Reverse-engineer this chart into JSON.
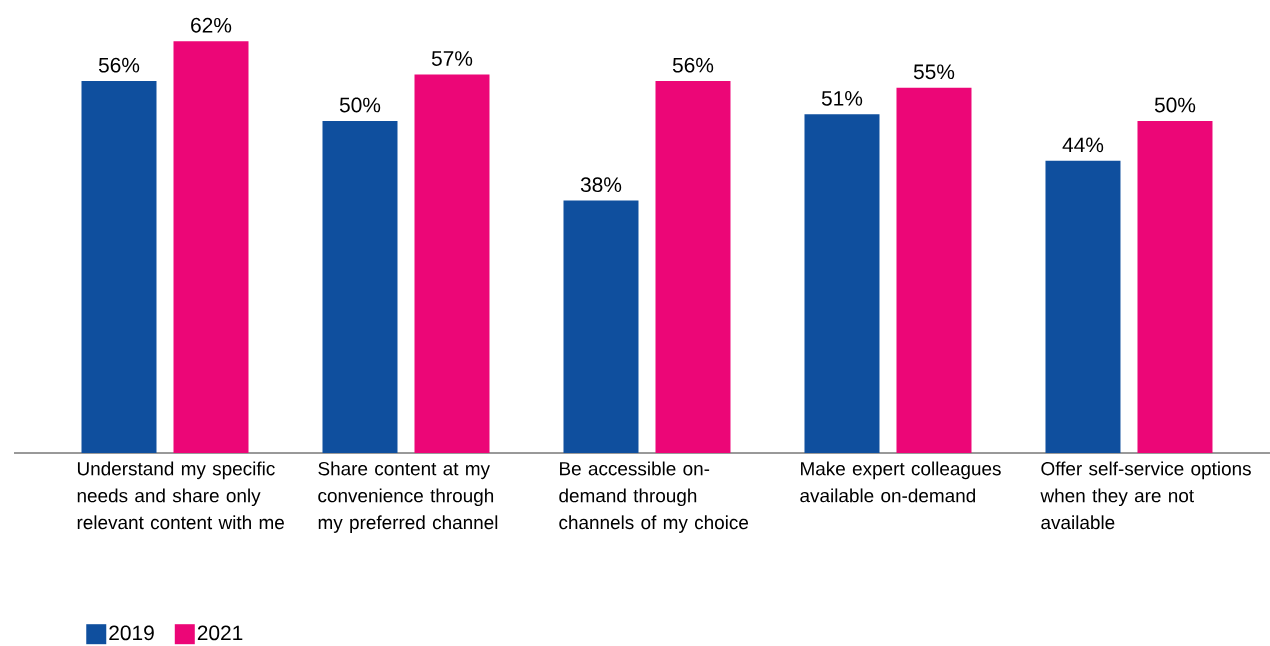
{
  "chart_data": {
    "type": "bar",
    "categories": [
      "Understand my specific needs and share only relevant content with me",
      "Share content at my convenience through my preferred channel",
      "Be accessible on-demand through channels of my choice",
      "Make expert colleagues available on-demand",
      "Offer self-service options when they are not available"
    ],
    "series": [
      {
        "name": "2019",
        "color": "#0f4f9e",
        "values": [
          56,
          50,
          38,
          51,
          44
        ],
        "value_labels": [
          "56%",
          "50%",
          "38%",
          "51%",
          "44%"
        ]
      },
      {
        "name": "2021",
        "color": "#ec0677",
        "values": [
          62,
          57,
          56,
          55,
          50
        ],
        "value_labels": [
          "62%",
          "57%",
          "56%",
          "55%",
          "50%"
        ]
      }
    ],
    "legend": "bottom left"
  }
}
